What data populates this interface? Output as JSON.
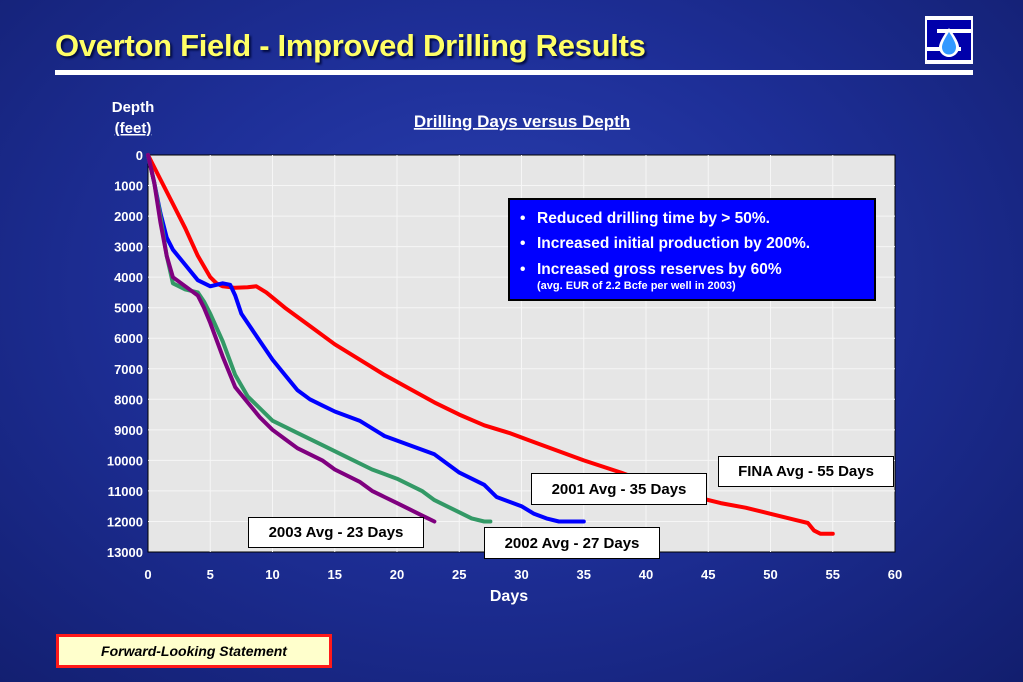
{
  "slide": {
    "title": "Overton Field - Improved Drilling Results",
    "footer_button": "Forward-Looking Statement"
  },
  "colors": {
    "title": "#ffff66",
    "plot_bg": "#e6e6e6",
    "fina": "#ff0000",
    "avg2001": "#0000ff",
    "avg2002": "#339966",
    "avg2003": "#7f007f"
  },
  "bullet_box": {
    "items": [
      "Reduced drilling time by > 50%.",
      "Increased initial production by 200%.",
      "Increased gross reserves by 60%"
    ],
    "note": "(avg. EUR of 2.2 Bcfe per well in 2003)"
  },
  "chart_data": {
    "type": "line",
    "title": "Drilling Days versus Depth",
    "xlabel": "Days",
    "ylabel_line1": "Depth",
    "ylabel_line2": "(feet)",
    "xlim": [
      0,
      60
    ],
    "ylim": [
      0,
      13000
    ],
    "y_inverted": true,
    "grid": true,
    "xticks": [
      0,
      5,
      10,
      15,
      20,
      25,
      30,
      35,
      40,
      45,
      50,
      55,
      60
    ],
    "yticks": [
      0,
      1000,
      2000,
      3000,
      4000,
      5000,
      6000,
      7000,
      8000,
      9000,
      10000,
      11000,
      12000,
      13000
    ],
    "series": [
      {
        "name": "FINA Avg - 55 Days",
        "color": "#ff0000",
        "points": [
          [
            0,
            0
          ],
          [
            1,
            800
          ],
          [
            2,
            1600
          ],
          [
            3,
            2400
          ],
          [
            4,
            3300
          ],
          [
            5,
            4000
          ],
          [
            5.5,
            4200
          ],
          [
            6,
            4300
          ],
          [
            7,
            4350
          ],
          [
            8,
            4330
          ],
          [
            8.7,
            4300
          ],
          [
            9.5,
            4500
          ],
          [
            11,
            5000
          ],
          [
            13,
            5600
          ],
          [
            15,
            6200
          ],
          [
            17,
            6700
          ],
          [
            19,
            7200
          ],
          [
            21,
            7650
          ],
          [
            23,
            8100
          ],
          [
            25,
            8500
          ],
          [
            27,
            8850
          ],
          [
            29,
            9100
          ],
          [
            31,
            9400
          ],
          [
            33,
            9700
          ],
          [
            35,
            10000
          ],
          [
            38,
            10400
          ],
          [
            40,
            10700
          ],
          [
            42,
            11000
          ],
          [
            44,
            11200
          ],
          [
            46,
            11400
          ],
          [
            48,
            11550
          ],
          [
            50,
            11750
          ],
          [
            52,
            11950
          ],
          [
            53,
            12050
          ],
          [
            53.5,
            12300
          ],
          [
            54,
            12400
          ],
          [
            55,
            12400
          ]
        ]
      },
      {
        "name": "2001 Avg - 35 Days",
        "color": "#0000ff",
        "points": [
          [
            0,
            0
          ],
          [
            0.5,
            900
          ],
          [
            1,
            1900
          ],
          [
            1.5,
            2700
          ],
          [
            2,
            3100
          ],
          [
            3,
            3600
          ],
          [
            4,
            4100
          ],
          [
            5,
            4300
          ],
          [
            6,
            4200
          ],
          [
            6.6,
            4250
          ],
          [
            7,
            4600
          ],
          [
            7.5,
            5200
          ],
          [
            8.5,
            5800
          ],
          [
            10,
            6700
          ],
          [
            11,
            7200
          ],
          [
            12,
            7700
          ],
          [
            13,
            8000
          ],
          [
            14,
            8200
          ],
          [
            15,
            8400
          ],
          [
            17,
            8700
          ],
          [
            19,
            9200
          ],
          [
            21,
            9500
          ],
          [
            23,
            9800
          ],
          [
            25,
            10400
          ],
          [
            27,
            10800
          ],
          [
            28,
            11200
          ],
          [
            30,
            11500
          ],
          [
            31,
            11750
          ],
          [
            32,
            11900
          ],
          [
            33,
            12000
          ],
          [
            34,
            12000
          ],
          [
            35,
            12000
          ]
        ]
      },
      {
        "name": "2002 Avg - 27 Days",
        "color": "#339966",
        "points": [
          [
            0,
            0
          ],
          [
            0.5,
            900
          ],
          [
            1,
            2000
          ],
          [
            1.5,
            3300
          ],
          [
            2,
            4200
          ],
          [
            3,
            4400
          ],
          [
            4,
            4500
          ],
          [
            4.5,
            4800
          ],
          [
            5,
            5200
          ],
          [
            6,
            6100
          ],
          [
            7,
            7200
          ],
          [
            8,
            7900
          ],
          [
            9,
            8300
          ],
          [
            10,
            8700
          ],
          [
            12,
            9100
          ],
          [
            14,
            9500
          ],
          [
            16,
            9900
          ],
          [
            18,
            10300
          ],
          [
            20,
            10600
          ],
          [
            22,
            11000
          ],
          [
            23,
            11300
          ],
          [
            24,
            11500
          ],
          [
            25,
            11700
          ],
          [
            26,
            11900
          ],
          [
            27,
            12000
          ],
          [
            27.5,
            12000
          ]
        ]
      },
      {
        "name": "2003 Avg - 23 Days",
        "color": "#7f007f",
        "points": [
          [
            0,
            0
          ],
          [
            0.5,
            900
          ],
          [
            1,
            2200
          ],
          [
            1.5,
            3300
          ],
          [
            2,
            4000
          ],
          [
            3,
            4300
          ],
          [
            4,
            4600
          ],
          [
            4.5,
            5000
          ],
          [
            5,
            5500
          ],
          [
            6,
            6600
          ],
          [
            7,
            7600
          ],
          [
            8,
            8100
          ],
          [
            9,
            8600
          ],
          [
            10,
            9000
          ],
          [
            11,
            9300
          ],
          [
            12,
            9600
          ],
          [
            14,
            10000
          ],
          [
            15,
            10300
          ],
          [
            17,
            10700
          ],
          [
            18,
            11000
          ],
          [
            19,
            11200
          ],
          [
            20,
            11400
          ],
          [
            21,
            11600
          ],
          [
            22,
            11800
          ],
          [
            22.5,
            11900
          ],
          [
            23,
            12000
          ]
        ]
      }
    ]
  }
}
